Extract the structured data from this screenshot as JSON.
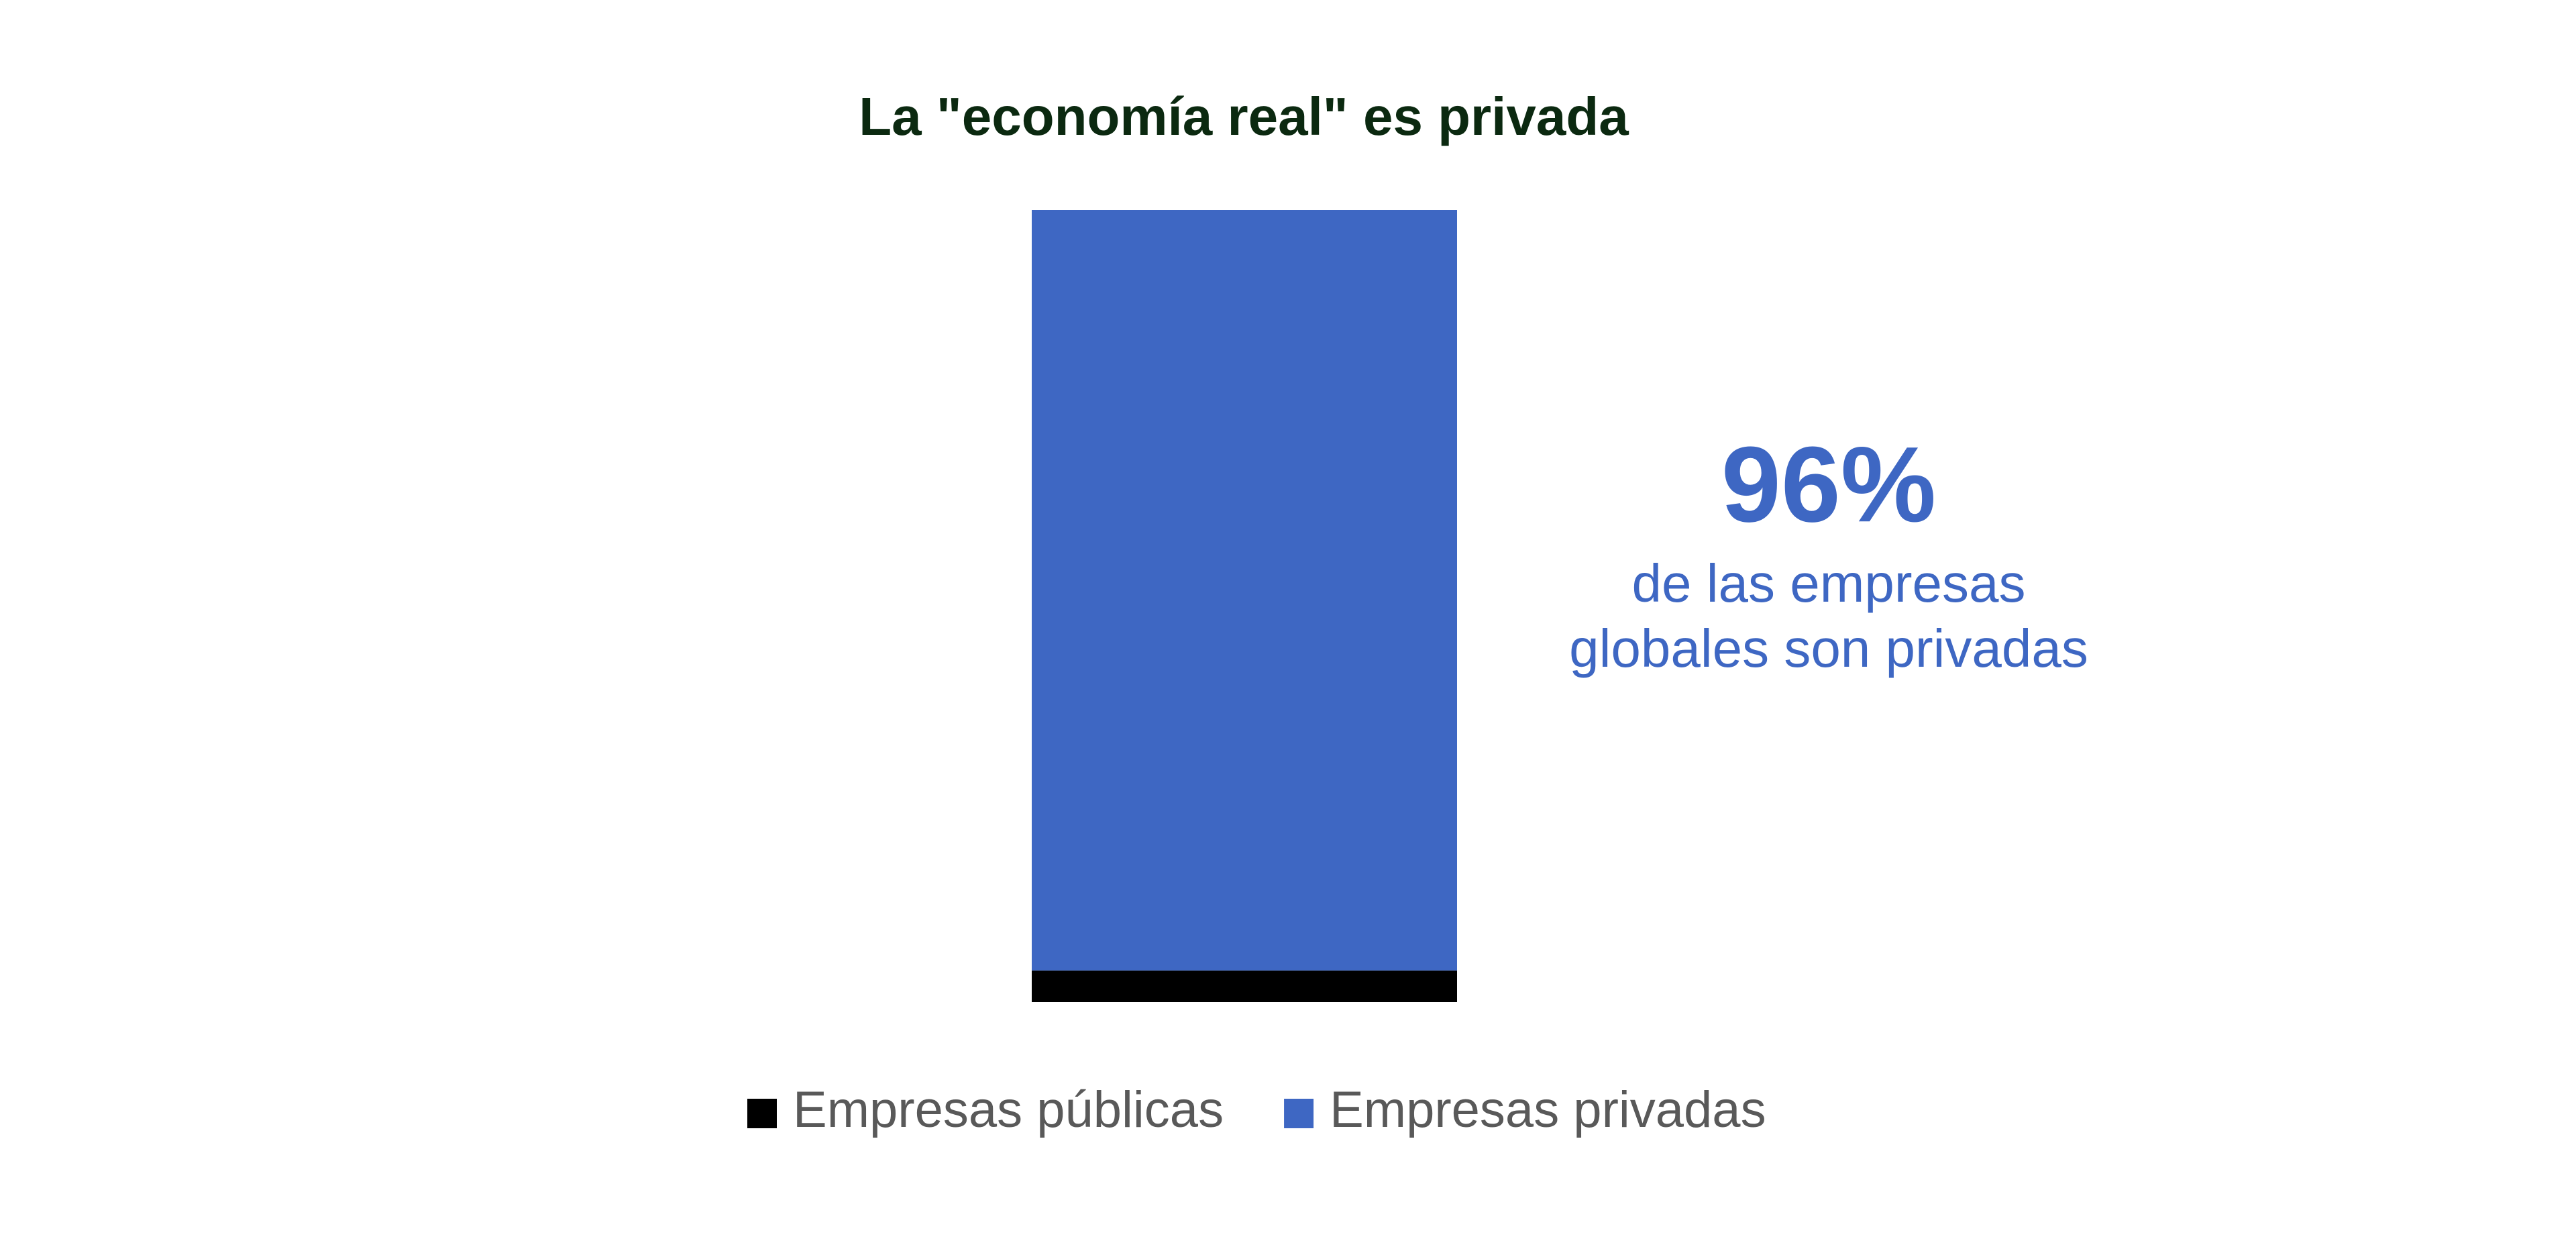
{
  "chart_data": {
    "type": "stacked_bar",
    "title": "La \"economía real\" es privada",
    "categories": [
      null
    ],
    "series": [
      {
        "name": "Empresas públicas",
        "color": "#000000",
        "values": [
          4
        ]
      },
      {
        "name": "Empresas privadas",
        "color": "#3e67c3",
        "values": [
          96
        ],
        "value_labels": [
          "96%"
        ]
      }
    ],
    "annotation": [
      "de las empresas",
      "globales son privadas"
    ],
    "ylim": [
      0,
      100
    ],
    "legend": "bottom"
  }
}
